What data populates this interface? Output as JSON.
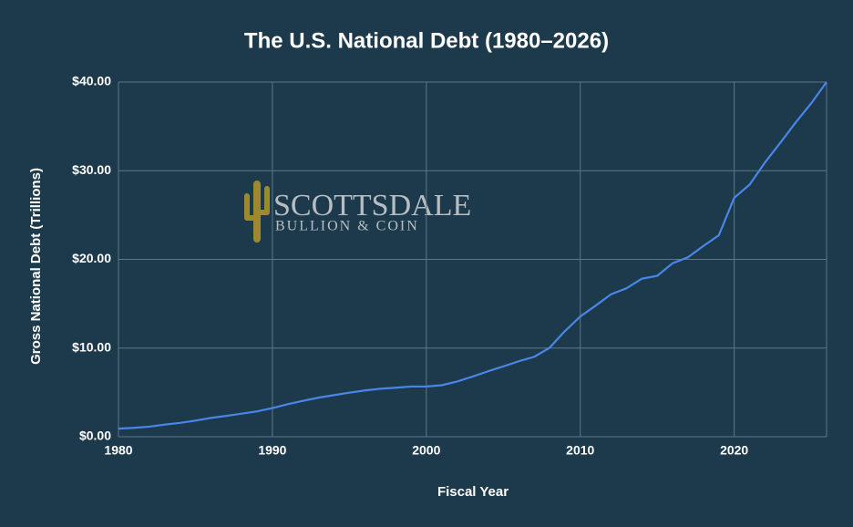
{
  "chart_data": {
    "type": "line",
    "title": "The U.S. National Debt (1980–2026)",
    "x_label": "Fiscal Year",
    "y_label": "Gross National Debt (Trillions)",
    "watermark": {
      "line1": "SCOTTSDALE",
      "line2": "BULLION & COIN"
    },
    "x": [
      1980,
      1981,
      1982,
      1983,
      1984,
      1985,
      1986,
      1987,
      1988,
      1989,
      1990,
      1991,
      1992,
      1993,
      1994,
      1995,
      1996,
      1997,
      1998,
      1999,
      2000,
      2001,
      2002,
      2003,
      2004,
      2005,
      2006,
      2007,
      2008,
      2009,
      2010,
      2011,
      2012,
      2013,
      2014,
      2015,
      2016,
      2017,
      2018,
      2019,
      2020,
      2021,
      2022,
      2023,
      2024,
      2025,
      2026
    ],
    "values": [
      0.91,
      1.0,
      1.14,
      1.37,
      1.56,
      1.82,
      2.12,
      2.35,
      2.6,
      2.86,
      3.23,
      3.67,
      4.06,
      4.41,
      4.69,
      4.97,
      5.22,
      5.41,
      5.53,
      5.66,
      5.67,
      5.81,
      6.23,
      6.78,
      7.38,
      7.93,
      8.51,
      9.01,
      10.02,
      11.91,
      13.56,
      14.79,
      16.07,
      16.74,
      17.82,
      18.15,
      19.57,
      20.24,
      21.52,
      22.72,
      26.95,
      28.43,
      30.93,
      33.17,
      35.46,
      37.6,
      40.0
    ],
    "color": "#4a86e8",
    "xlim": [
      1980,
      2026
    ],
    "xticks": [
      1980,
      1990,
      2000,
      2010,
      2020
    ],
    "ylim": [
      0,
      40
    ],
    "yticks": [
      {
        "value": 0,
        "label": "$0.00"
      },
      {
        "value": 10,
        "label": "$10.00"
      },
      {
        "value": 20,
        "label": "$20.00"
      },
      {
        "value": 30,
        "label": "$30.00"
      },
      {
        "value": 40,
        "label": "$40.00"
      }
    ],
    "grid": true
  }
}
